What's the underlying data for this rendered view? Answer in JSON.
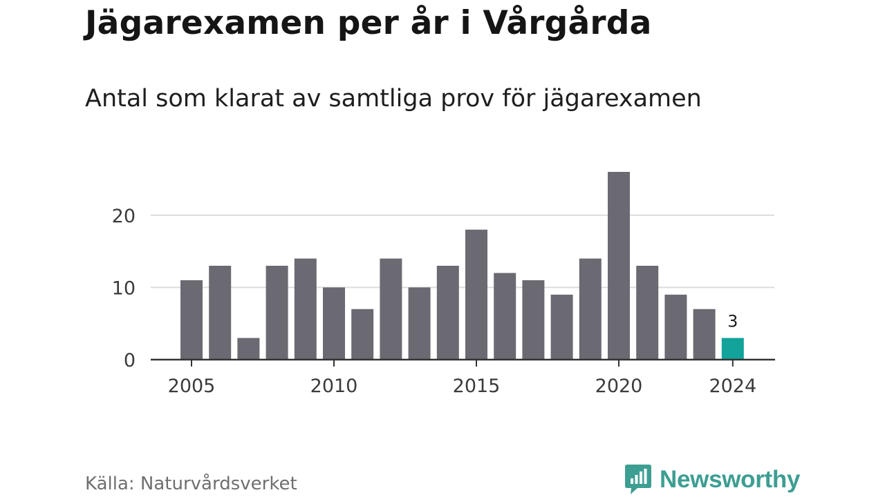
{
  "title": "Jägarexamen per år i Vårgårda",
  "subtitle": "Antal som klarat av samtliga prov för jägarexamen",
  "source": "Källa: Naturvårdsverket",
  "brand": {
    "name": "Newsworthy",
    "icon": "bar-chart-speech-bubble-icon"
  },
  "colors": {
    "bar": "#6b6a72",
    "highlight": "#12a39a",
    "grid": "#dcdcdc",
    "axis": "#333333",
    "brand": "#3d9e92"
  },
  "chart_data": {
    "type": "bar",
    "categories": [
      2005,
      2006,
      2007,
      2008,
      2009,
      2010,
      2011,
      2012,
      2013,
      2014,
      2015,
      2016,
      2017,
      2018,
      2019,
      2020,
      2021,
      2022,
      2023,
      2024
    ],
    "values": [
      11,
      13,
      3,
      13,
      14,
      10,
      7,
      14,
      10,
      13,
      18,
      12,
      11,
      9,
      14,
      26,
      13,
      9,
      7,
      3
    ],
    "highlight_category": 2024,
    "data_labels": [
      {
        "category": 2024,
        "text": "3"
      }
    ],
    "x_ticks": [
      2005,
      2010,
      2015,
      2020,
      2024
    ],
    "y_ticks": [
      0,
      10,
      20
    ],
    "ylim": [
      0,
      26
    ],
    "grid": true,
    "legend": "none",
    "xlabel": "",
    "ylabel": ""
  }
}
